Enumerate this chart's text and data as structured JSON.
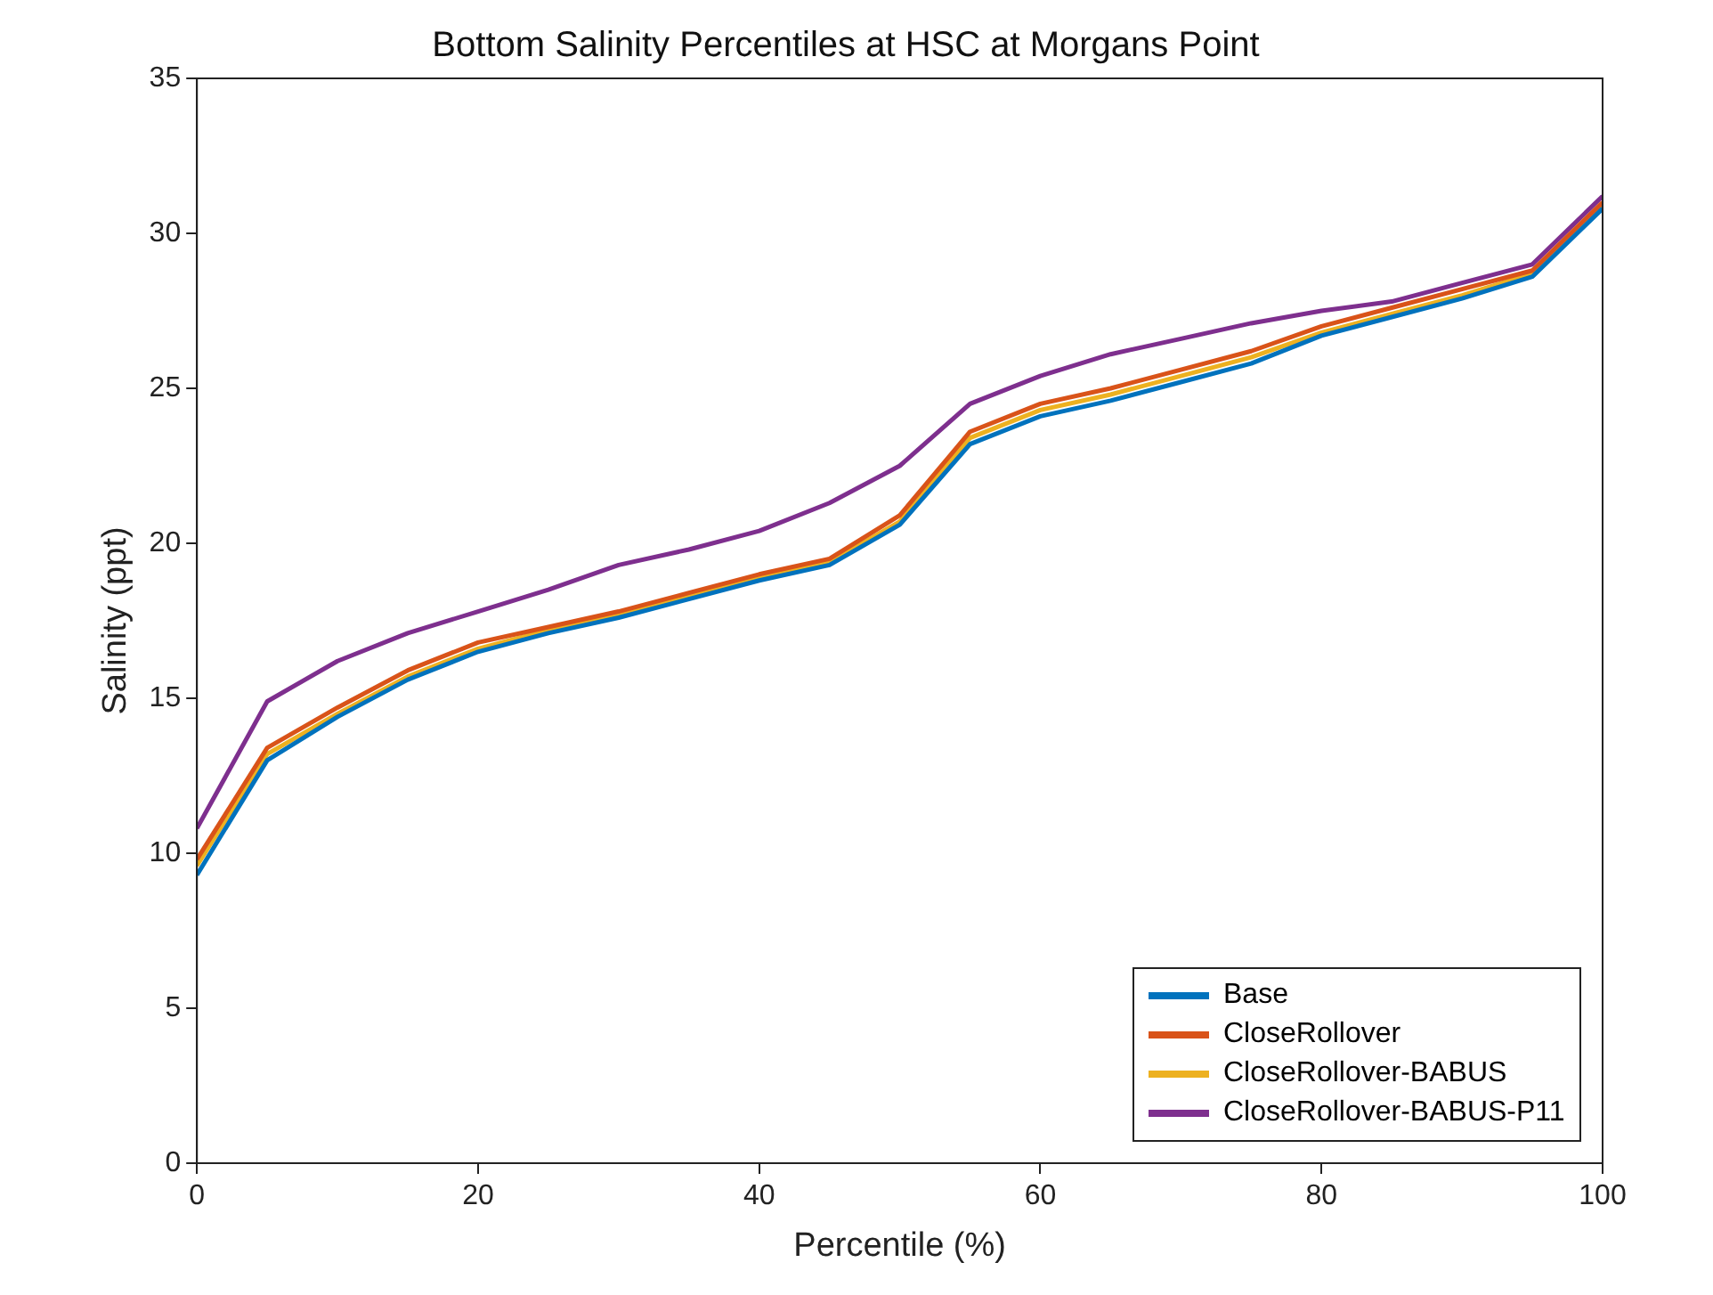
{
  "chart_data": {
    "type": "line",
    "title": "Bottom Salinity Percentiles at HSC at Morgans Point",
    "xlabel": "Percentile (%)",
    "ylabel": "Salinity (ppt)",
    "x": [
      0,
      5,
      10,
      15,
      20,
      25,
      30,
      35,
      40,
      45,
      50,
      55,
      60,
      65,
      70,
      75,
      80,
      85,
      90,
      95,
      100
    ],
    "xlim": [
      0,
      100
    ],
    "xticks": [
      0,
      20,
      40,
      60,
      80,
      100
    ],
    "ylim": [
      0,
      35
    ],
    "yticks": [
      0,
      5,
      10,
      15,
      20,
      25,
      30,
      35
    ],
    "grid": false,
    "legend": "bottom right",
    "marker": "none",
    "line_style": "solid",
    "series": [
      {
        "name": "Base",
        "color": "#0072bd",
        "values": [
          9.3,
          13.0,
          14.4,
          15.6,
          16.5,
          17.1,
          17.6,
          18.2,
          18.8,
          19.3,
          20.6,
          23.2,
          24.1,
          24.6,
          25.2,
          25.8,
          26.7,
          27.3,
          27.9,
          28.6,
          30.8
        ]
      },
      {
        "name": "CloseRollover",
        "color": "#d95319",
        "values": [
          9.8,
          13.4,
          14.7,
          15.9,
          16.8,
          17.3,
          17.8,
          18.4,
          19.0,
          19.5,
          20.9,
          23.6,
          24.5,
          25.0,
          25.6,
          26.2,
          27.0,
          27.6,
          28.2,
          28.8,
          31.0
        ]
      },
      {
        "name": "CloseRollover-BABUS",
        "color": "#edb120",
        "values": [
          9.6,
          13.2,
          14.5,
          15.7,
          16.6,
          17.2,
          17.7,
          18.3,
          18.9,
          19.4,
          20.7,
          23.4,
          24.3,
          24.8,
          25.4,
          26.0,
          26.8,
          27.4,
          28.0,
          28.7,
          30.9
        ]
      },
      {
        "name": "CloseRollover-BABUS-P11",
        "color": "#7e2f8e",
        "values": [
          10.8,
          14.9,
          16.2,
          17.1,
          17.8,
          18.5,
          19.3,
          19.8,
          20.4,
          21.3,
          22.5,
          24.5,
          25.4,
          26.1,
          26.6,
          27.1,
          27.5,
          27.8,
          28.4,
          29.0,
          31.2
        ]
      }
    ]
  }
}
